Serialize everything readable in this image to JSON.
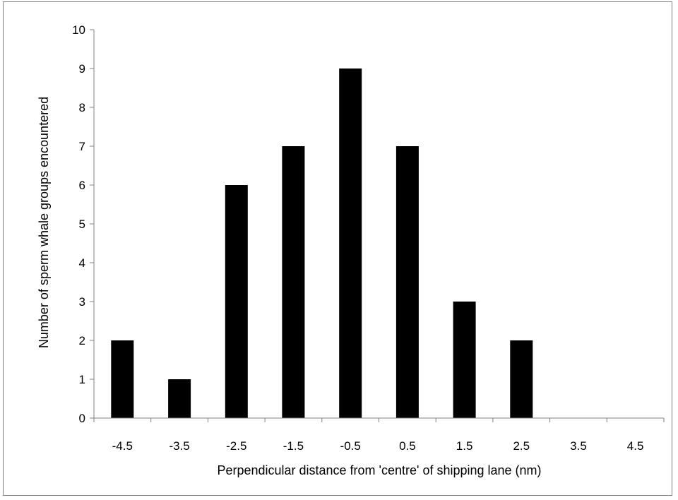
{
  "chart_data": {
    "type": "bar",
    "title": "",
    "xlabel": "Perpendicular distance from 'centre' of shipping lane (nm)",
    "ylabel": "Number of sperm whale groups encountered",
    "categories": [
      "-4.5",
      "-3.5",
      "-2.5",
      "-1.5",
      "-0.5",
      "0.5",
      "1.5",
      "2.5",
      "3.5",
      "4.5"
    ],
    "values": [
      2,
      1,
      6,
      7,
      9,
      7,
      3,
      2,
      0,
      0
    ],
    "ylim": [
      0,
      10
    ],
    "yticks": [
      "0",
      "1",
      "2",
      "3",
      "4",
      "5",
      "6",
      "7",
      "8",
      "9",
      "10"
    ],
    "grid": false,
    "legend": "none",
    "bar_color": "#000000"
  }
}
